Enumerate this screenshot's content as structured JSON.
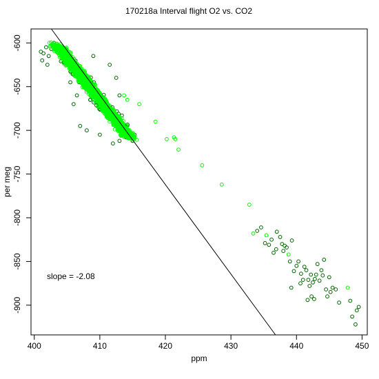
{
  "chart_data": {
    "type": "scatter",
    "title": "170218a   Interval flight O2 vs. CO2",
    "xlabel": "ppm",
    "ylabel": "per meg",
    "xlim": [
      399.5,
      450.8
    ],
    "ylim": [
      -934,
      -584
    ],
    "x_ticks": [
      "400",
      "410",
      "420",
      "430",
      "440",
      "450"
    ],
    "y_ticks": [
      "-600",
      "-650",
      "-700",
      "-750",
      "-800",
      "-850",
      "-900"
    ],
    "annotation": "slope =  -2.08",
    "fit_line": {
      "slope": -2.08,
      "points": [
        [
          402.6,
          -584
        ],
        [
          436.8,
          -934
        ]
      ]
    },
    "colors": {
      "series_dark": "#006400",
      "series_light": "#00ff00",
      "fit_line": "#000000"
    },
    "dense_cluster": {
      "band_start": [
        403.5,
        -603
      ],
      "band_end": [
        414.5,
        -708
      ],
      "band_width_ppm": 3.2,
      "count": 2200
    },
    "series_dark_points": [
      [
        401.0,
        -610
      ],
      [
        401.4,
        -612
      ],
      [
        401.8,
        -605
      ],
      [
        402.2,
        -615
      ],
      [
        401.2,
        -620
      ],
      [
        402.6,
        -607
      ],
      [
        403.0,
        -600
      ],
      [
        403.5,
        -603
      ],
      [
        404.0,
        -608
      ],
      [
        402.0,
        -625
      ],
      [
        406.5,
        -660
      ],
      [
        407.0,
        -695
      ],
      [
        408.0,
        -700
      ],
      [
        410.0,
        -705
      ],
      [
        412.0,
        -715
      ],
      [
        413.0,
        -712
      ],
      [
        414.0,
        -708
      ],
      [
        415.0,
        -712
      ],
      [
        415.3,
        -705
      ],
      [
        412.5,
        -640
      ],
      [
        413.0,
        -660
      ],
      [
        411.5,
        -625
      ],
      [
        409.0,
        -615
      ],
      [
        405.5,
        -645
      ],
      [
        406.0,
        -670
      ],
      [
        434.0,
        -815
      ],
      [
        434.6,
        -811
      ],
      [
        435.2,
        -829
      ],
      [
        435.8,
        -831
      ],
      [
        436.2,
        -825
      ],
      [
        436.5,
        -840
      ],
      [
        437.0,
        -816
      ],
      [
        437.5,
        -822
      ],
      [
        437.8,
        -830
      ],
      [
        438.0,
        -838
      ],
      [
        438.5,
        -834
      ],
      [
        439.0,
        -850
      ],
      [
        439.3,
        -826
      ],
      [
        439.6,
        -861
      ],
      [
        440.0,
        -855
      ],
      [
        440.3,
        -850
      ],
      [
        440.7,
        -864
      ],
      [
        441.0,
        -871
      ],
      [
        441.2,
        -856
      ],
      [
        441.5,
        -860
      ],
      [
        441.8,
        -871
      ],
      [
        442.0,
        -878
      ],
      [
        442.2,
        -865
      ],
      [
        442.5,
        -874
      ],
      [
        442.8,
        -870
      ],
      [
        443.0,
        -865
      ],
      [
        443.2,
        -853
      ],
      [
        443.5,
        -872
      ],
      [
        443.8,
        -860
      ],
      [
        444.0,
        -866
      ],
      [
        444.2,
        -848
      ],
      [
        444.5,
        -882
      ],
      [
        444.7,
        -890
      ],
      [
        445.0,
        -868
      ],
      [
        445.2,
        -885
      ],
      [
        445.5,
        -880
      ],
      [
        446.0,
        -882
      ],
      [
        446.5,
        -897
      ],
      [
        448.2,
        -895
      ],
      [
        448.5,
        -913
      ],
      [
        449.0,
        -922
      ],
      [
        449.2,
        -906
      ],
      [
        449.5,
        -902
      ],
      [
        442.3,
        -890
      ],
      [
        441.7,
        -894
      ],
      [
        442.7,
        -893
      ],
      [
        439.2,
        -880
      ],
      [
        440.6,
        -875
      ],
      [
        438.2,
        -832
      ],
      [
        436.9,
        -836
      ]
    ],
    "series_light_points": [
      [
        416.0,
        -670
      ],
      [
        418.5,
        -690
      ],
      [
        420.2,
        -710
      ],
      [
        421.3,
        -708
      ],
      [
        421.5,
        -710
      ],
      [
        422.0,
        -722
      ],
      [
        425.6,
        -740
      ],
      [
        428.6,
        -762
      ],
      [
        432.8,
        -785
      ],
      [
        433.4,
        -818
      ],
      [
        435.4,
        -820
      ],
      [
        438.8,
        -842
      ],
      [
        447.8,
        -880
      ],
      [
        413.7,
        -660
      ],
      [
        414.2,
        -665
      ]
    ]
  }
}
